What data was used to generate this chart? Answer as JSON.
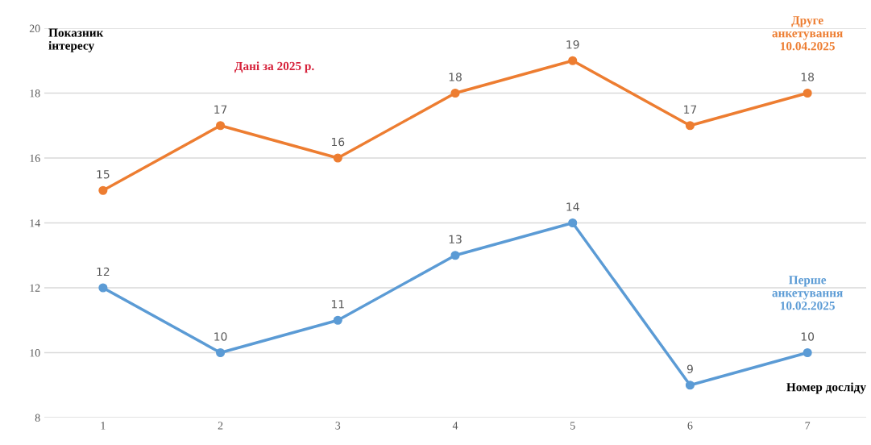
{
  "chart_data": {
    "type": "line",
    "ylabel": "Показник інтересу",
    "xlabel": "Номер досліду",
    "categories": [
      "1",
      "2",
      "3",
      "4",
      "5",
      "6",
      "7"
    ],
    "series": [
      {
        "name": "Друге анкетування 10.04.2025",
        "color": "#ed7d31",
        "values": [
          15,
          17,
          16,
          18,
          19,
          17,
          18
        ]
      },
      {
        "name": "Перше анкетування 10.02.2025",
        "color": "#5b9bd5",
        "values": [
          12,
          10,
          11,
          13,
          14,
          9,
          10
        ]
      }
    ],
    "ylim": [
      8,
      20
    ],
    "yticks": [
      8,
      10,
      12,
      14,
      16,
      18,
      20
    ],
    "grid": "y",
    "data_labels": true,
    "marker": "circle",
    "line_style": "solid",
    "annotations": [
      "Дані за 2025 р."
    ]
  }
}
